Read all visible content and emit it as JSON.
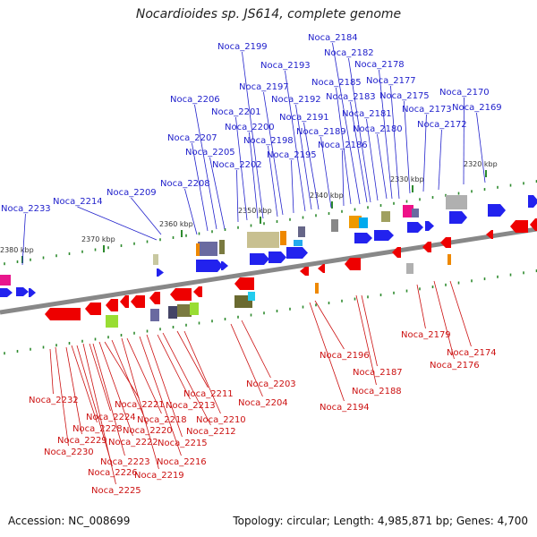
{
  "title": "Nocardioides sp. JS614, complete genome",
  "footer": {
    "accession": "Accession: NC_008699",
    "topology": "Topology: circular; Length: 4,985,871 bp; Genes: 4,700"
  },
  "colors": {
    "forward_label": "#2222cc",
    "reverse_label": "#cc1111",
    "backbone": "#888888",
    "forward_gene": "#0000ee",
    "reverse_gene": "#ee0000",
    "tick_minor": "#2e8b2e"
  },
  "scale_labels": [
    "2320 kbp",
    "2330 kbp",
    "2340 kbp",
    "2350 kbp",
    "2360 kbp",
    "2370 kbp",
    "2380 kbp"
  ],
  "forward_labels": [
    "Noca_2233",
    "Noca_2214",
    "Noca_2209",
    "Noca_2208",
    "Noca_2207",
    "Noca_2206",
    "Noca_2205",
    "Noca_2202",
    "Noca_2201",
    "Noca_2200",
    "Noca_2199",
    "Noca_2198",
    "Noca_2197",
    "Noca_2195",
    "Noca_2193",
    "Noca_2192",
    "Noca_2191",
    "Noca_2189",
    "Noca_2186",
    "Noca_2185",
    "Noca_2184",
    "Noca_2183",
    "Noca_2182",
    "Noca_2181",
    "Noca_2180",
    "Noca_2178",
    "Noca_2177",
    "Noca_2175",
    "Noca_2173",
    "Noca_2172",
    "Noca_2170",
    "Noca_2169"
  ],
  "reverse_labels": [
    "Noca_2232",
    "Noca_2230",
    "Noca_2229",
    "Noca_2228",
    "Noca_2226",
    "Noca_2225",
    "Noca_2224",
    "Noca_2223",
    "Noca_2222",
    "Noca_2221",
    "Noca_2220",
    "Noca_2219",
    "Noca_2218",
    "Noca_2216",
    "Noca_2215",
    "Noca_2213",
    "Noca_2212",
    "Noca_2211",
    "Noca_2210",
    "Noca_2204",
    "Noca_2203",
    "Noca_2196",
    "Noca_2194",
    "Noca_2188",
    "Noca_2187",
    "Noca_2179",
    "Noca_2176",
    "Noca_2174"
  ]
}
